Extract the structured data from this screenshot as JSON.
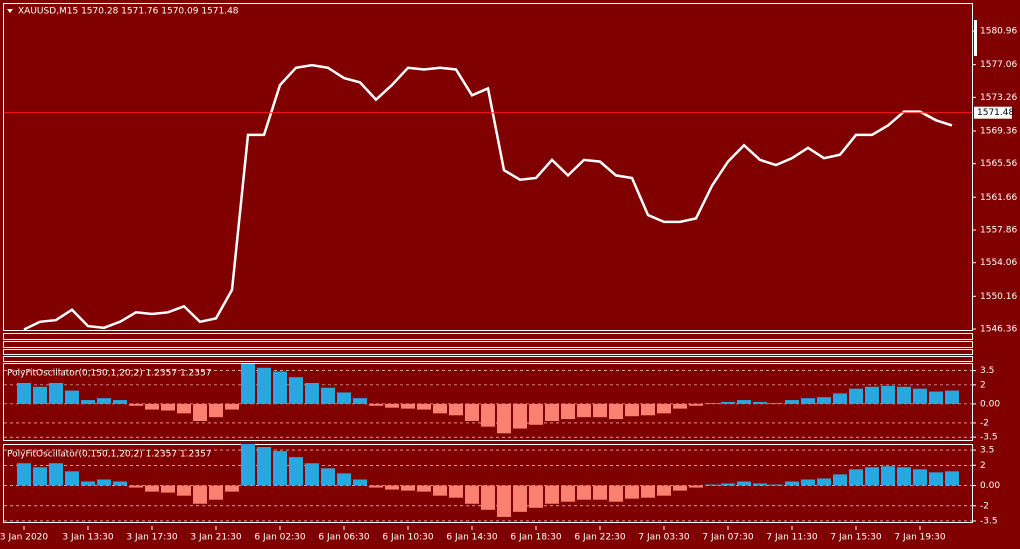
{
  "chart_data": [
    {
      "type": "line",
      "title": "XAUUSD,M15  1570.28 1571.76 1570.09 1571.48",
      "color": "#ffffff",
      "categories": [
        "3 Jan 2020",
        null,
        null,
        null,
        "3 Jan 13:30",
        null,
        null,
        null,
        "3 Jan 17:30",
        null,
        null,
        null,
        "3 Jan 21:30",
        null,
        null,
        null,
        "6 Jan 02:30",
        null,
        null,
        null,
        "6 Jan 06:30",
        null,
        null,
        null,
        "6 Jan 10:30",
        null,
        null,
        null,
        "6 Jan 14:30",
        null,
        null,
        null,
        "6 Jan 18:30",
        null,
        null,
        null,
        "6 Jan 22:30",
        null,
        null,
        null,
        "7 Jan 03:30",
        null,
        null,
        null,
        "7 Jan 07:30",
        null,
        null,
        null,
        "7 Jan 11:30",
        null,
        null,
        null,
        "7 Jan 15:30",
        null,
        null,
        null,
        "7 Jan 19:30",
        null,
        null
      ],
      "values": [
        1546.3,
        1547.2,
        1547.4,
        1548.6,
        1546.7,
        1546.5,
        1547.2,
        1548.3,
        1548.1,
        1548.3,
        1549.0,
        1547.2,
        1547.6,
        1550.9,
        1568.9,
        1568.9,
        1574.7,
        1576.7,
        1577.0,
        1576.7,
        1575.5,
        1575.0,
        1573.0,
        1574.7,
        1576.7,
        1576.5,
        1576.7,
        1576.5,
        1573.5,
        1574.3,
        1564.8,
        1563.7,
        1563.9,
        1566.0,
        1564.2,
        1566.0,
        1565.8,
        1564.2,
        1563.9,
        1559.6,
        1558.8,
        1558.8,
        1559.2,
        1563.0,
        1565.8,
        1567.7,
        1566.0,
        1565.4,
        1566.2,
        1567.4,
        1566.2,
        1566.6,
        1568.9,
        1568.9,
        1570.0,
        1571.6,
        1571.6,
        1570.6,
        1570.0
      ],
      "current_price": 1571.48,
      "ylim": [
        1546.13,
        1584.22
      ],
      "yticks": [
        1580.96,
        1577.06,
        1573.26,
        1569.36,
        1565.56,
        1561.66,
        1557.86,
        1554.06,
        1550.16,
        1546.36
      ]
    },
    {
      "type": "bar",
      "title": "PolyFitOscillator(0,150,1,20,2) 1.2357 1.2357",
      "colors": [
        "#2aa7e0",
        "#fa8072"
      ],
      "values": [
        2.2,
        1.8,
        2.2,
        1.4,
        0.4,
        0.6,
        0.4,
        -0.2,
        -0.6,
        -0.7,
        -1.0,
        -1.8,
        -1.4,
        -0.6,
        4.2,
        3.8,
        3.4,
        2.8,
        2.2,
        1.7,
        1.2,
        0.6,
        -0.2,
        -0.4,
        -0.5,
        -0.6,
        -1.0,
        -1.2,
        -1.8,
        -2.4,
        -3.1,
        -2.6,
        -2.2,
        -1.8,
        -1.6,
        -1.4,
        -1.4,
        -1.6,
        -1.3,
        -1.2,
        -1.0,
        -0.5,
        -0.2,
        0.1,
        0.2,
        0.4,
        0.2,
        0.1,
        0.4,
        0.6,
        0.7,
        1.1,
        1.6,
        1.8,
        1.9,
        1.8,
        1.6,
        1.3,
        1.4
      ],
      "ylim": [
        -3.8,
        4.3
      ],
      "yticks": [
        3.5,
        2,
        {
          "value": 0,
          "label": "0.00"
        },
        -2,
        -3.5
      ]
    },
    {
      "type": "bar",
      "title": "PolyFitOscillator(0,150,1,20,2) 1.2357 1.2357",
      "colors": [
        "#2aa7e0",
        "#fa8072"
      ],
      "values": [
        2.2,
        1.8,
        2.2,
        1.4,
        0.4,
        0.6,
        0.4,
        -0.2,
        -0.6,
        -0.7,
        -1.0,
        -1.8,
        -1.4,
        -0.6,
        4.1,
        3.8,
        3.4,
        2.8,
        2.2,
        1.7,
        1.2,
        0.6,
        -0.2,
        -0.4,
        -0.5,
        -0.6,
        -1.0,
        -1.2,
        -1.8,
        -2.4,
        -3.1,
        -2.6,
        -2.2,
        -1.8,
        -1.6,
        -1.4,
        -1.4,
        -1.6,
        -1.3,
        -1.2,
        -1.0,
        -0.5,
        -0.2,
        0.1,
        0.2,
        0.4,
        0.2,
        0.1,
        0.4,
        0.6,
        0.7,
        1.1,
        1.6,
        1.8,
        1.9,
        1.8,
        1.6,
        1.3,
        1.4
      ],
      "ylim": [
        -3.7,
        4.1
      ],
      "yticks": [
        3.5,
        2,
        {
          "value": 0,
          "label": "0.00"
        },
        -2,
        -3.5
      ]
    }
  ]
}
